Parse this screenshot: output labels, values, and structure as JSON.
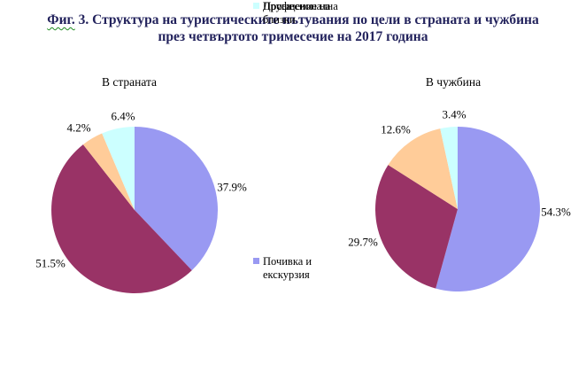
{
  "figure": {
    "caption_prefix": "Фиг.",
    "caption_line1_rest": " 3. Структура на туристическите пътувания по цели в страната и чужбина",
    "caption_line2": "през четвъртото тримесечие на 2017 година"
  },
  "legend": {
    "position": "center-between-charts",
    "items": [
      {
        "label": "Почивка и екскурзия",
        "lines": [
          "Почивка и",
          "екскурзия"
        ],
        "color": "#9999F2"
      },
      {
        "label": "Посещение на близки",
        "lines": [
          "Посещение на",
          "близки"
        ],
        "color": "#993366"
      },
      {
        "label": "Професионална",
        "lines": [
          "Професионална"
        ],
        "color": "#FFCC99"
      },
      {
        "label": "Друга",
        "lines": [
          "Друга"
        ],
        "color": "#CCFFFF"
      }
    ]
  },
  "chart_data": [
    {
      "type": "pie",
      "title": "В страната",
      "categories": [
        "Почивка и екскурзия",
        "Посещение на близки",
        "Професионална",
        "Друга"
      ],
      "values": [
        37.9,
        51.5,
        4.2,
        6.4
      ],
      "value_labels": [
        "37.9%",
        "51.5%",
        "4.2%",
        "6.4%"
      ],
      "colors": [
        "#9999F2",
        "#993366",
        "#FFCC99",
        "#CCFFFF"
      ],
      "start_angle_deg": 0,
      "direction": "clockwise"
    },
    {
      "type": "pie",
      "title": "В чужбина",
      "categories": [
        "Почивка и екскурзия",
        "Посещение на близки",
        "Професионална",
        "Друга"
      ],
      "values": [
        54.3,
        29.7,
        12.6,
        3.4
      ],
      "value_labels": [
        "54.3%",
        "29.7%",
        "12.6%",
        "3.4%"
      ],
      "colors": [
        "#9999F2",
        "#993366",
        "#FFCC99",
        "#CCFFFF"
      ],
      "start_angle_deg": 0,
      "direction": "clockwise"
    }
  ]
}
